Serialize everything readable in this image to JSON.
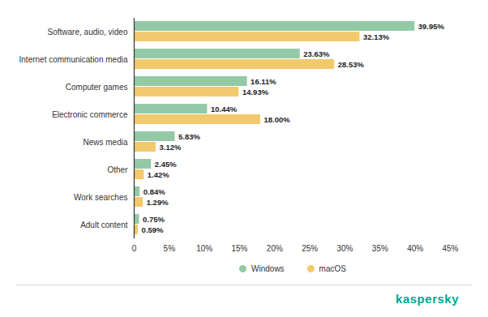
{
  "chart_data": {
    "type": "bar",
    "orientation": "horizontal",
    "categories": [
      "Software, audio, video",
      "Internet communication media",
      "Computer games",
      "Electronic commerce",
      "News media",
      "Other",
      "Work searches",
      "Adult content"
    ],
    "series": [
      {
        "name": "Windows",
        "color": "#93c9a6",
        "values": [
          39.95,
          23.63,
          16.11,
          10.44,
          5.83,
          2.45,
          0.84,
          0.75
        ],
        "value_labels": [
          "39.95%",
          "23.63%",
          "16.11%",
          "10.44%",
          "5.83%",
          "2.45%",
          "0.84%",
          "0.75%"
        ]
      },
      {
        "name": "macOS",
        "color": "#f2c96d",
        "values": [
          32.13,
          28.53,
          14.93,
          18.0,
          3.12,
          1.42,
          1.29,
          0.59
        ],
        "value_labels": [
          "32.13%",
          "28.53%",
          "14.93%",
          "18.00%",
          "3.12%",
          "1.42%",
          "1.29%",
          "0.59%"
        ]
      }
    ],
    "xlim": [
      0,
      45
    ],
    "xticks": [
      0,
      {
        "value": 5,
        "label": "5%"
      },
      {
        "value": 10,
        "label": "10%"
      },
      {
        "value": 15,
        "label": "15%"
      },
      {
        "value": 20,
        "label": "20%"
      },
      {
        "value": 25,
        "label": "25%"
      },
      {
        "value": 30,
        "label": "30%"
      },
      {
        "value": 35,
        "label": "35%"
      },
      {
        "value": 40,
        "label": "40%"
      },
      {
        "value": 45,
        "label": "45%"
      }
    ],
    "grid": false,
    "data_labels": true,
    "legend": "bottom",
    "annotations": [
      "kaspersky"
    ]
  }
}
